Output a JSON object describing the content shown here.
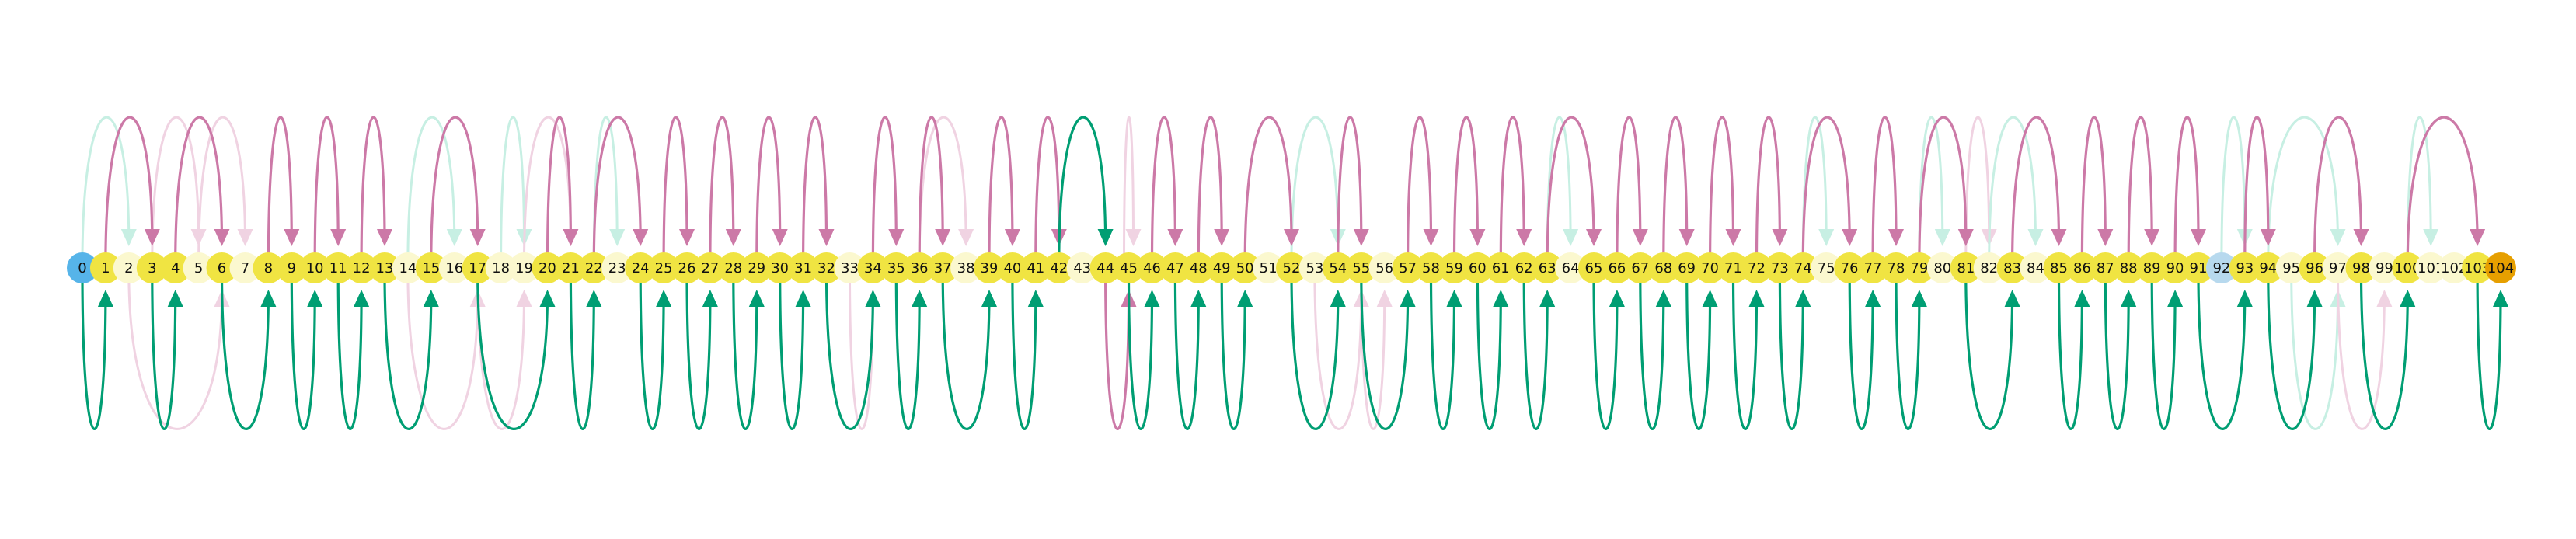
{
  "chart_data": {
    "type": "arc-diagram",
    "title": "",
    "nodes": [
      {
        "label": "0",
        "kind": "start"
      },
      {
        "label": "1",
        "kind": "main"
      },
      {
        "label": "2",
        "kind": "faint"
      },
      {
        "label": "3",
        "kind": "main"
      },
      {
        "label": "4",
        "kind": "main"
      },
      {
        "label": "5",
        "kind": "faint"
      },
      {
        "label": "6",
        "kind": "main"
      },
      {
        "label": "7",
        "kind": "faint"
      },
      {
        "label": "8",
        "kind": "main"
      },
      {
        "label": "9",
        "kind": "main"
      },
      {
        "label": "10",
        "kind": "main"
      },
      {
        "label": "11",
        "kind": "main"
      },
      {
        "label": "12",
        "kind": "main"
      },
      {
        "label": "13",
        "kind": "main"
      },
      {
        "label": "14",
        "kind": "faint"
      },
      {
        "label": "15",
        "kind": "main"
      },
      {
        "label": "16",
        "kind": "faint"
      },
      {
        "label": "17",
        "kind": "main"
      },
      {
        "label": "18",
        "kind": "faint"
      },
      {
        "label": "19",
        "kind": "faint"
      },
      {
        "label": "20",
        "kind": "main"
      },
      {
        "label": "21",
        "kind": "main"
      },
      {
        "label": "22",
        "kind": "main"
      },
      {
        "label": "23",
        "kind": "faint"
      },
      {
        "label": "24",
        "kind": "main"
      },
      {
        "label": "25",
        "kind": "main"
      },
      {
        "label": "26",
        "kind": "main"
      },
      {
        "label": "27",
        "kind": "main"
      },
      {
        "label": "28",
        "kind": "main"
      },
      {
        "label": "29",
        "kind": "main"
      },
      {
        "label": "30",
        "kind": "main"
      },
      {
        "label": "31",
        "kind": "main"
      },
      {
        "label": "32",
        "kind": "main"
      },
      {
        "label": "33",
        "kind": "faint"
      },
      {
        "label": "34",
        "kind": "main"
      },
      {
        "label": "35",
        "kind": "main"
      },
      {
        "label": "36",
        "kind": "main"
      },
      {
        "label": "37",
        "kind": "main"
      },
      {
        "label": "38",
        "kind": "faint"
      },
      {
        "label": "39",
        "kind": "main"
      },
      {
        "label": "40",
        "kind": "main"
      },
      {
        "label": "41",
        "kind": "main"
      },
      {
        "label": "42",
        "kind": "main"
      },
      {
        "label": "43",
        "kind": "faint"
      },
      {
        "label": "44",
        "kind": "main"
      },
      {
        "label": "45",
        "kind": "main"
      },
      {
        "label": "46",
        "kind": "main"
      },
      {
        "label": "47",
        "kind": "main"
      },
      {
        "label": "48",
        "kind": "main"
      },
      {
        "label": "49",
        "kind": "main"
      },
      {
        "label": "50",
        "kind": "main"
      },
      {
        "label": "51",
        "kind": "faint"
      },
      {
        "label": "52",
        "kind": "main"
      },
      {
        "label": "53",
        "kind": "faint"
      },
      {
        "label": "54",
        "kind": "main"
      },
      {
        "label": "55",
        "kind": "main"
      },
      {
        "label": "56",
        "kind": "faint"
      },
      {
        "label": "57",
        "kind": "main"
      },
      {
        "label": "58",
        "kind": "main"
      },
      {
        "label": "59",
        "kind": "main"
      },
      {
        "label": "60",
        "kind": "main"
      },
      {
        "label": "61",
        "kind": "main"
      },
      {
        "label": "62",
        "kind": "main"
      },
      {
        "label": "63",
        "kind": "main"
      },
      {
        "label": "64",
        "kind": "faint"
      },
      {
        "label": "65",
        "kind": "main"
      },
      {
        "label": "66",
        "kind": "main"
      },
      {
        "label": "67",
        "kind": "main"
      },
      {
        "label": "68",
        "kind": "main"
      },
      {
        "label": "69",
        "kind": "main"
      },
      {
        "label": "70",
        "kind": "main"
      },
      {
        "label": "71",
        "kind": "main"
      },
      {
        "label": "72",
        "kind": "main"
      },
      {
        "label": "73",
        "kind": "main"
      },
      {
        "label": "74",
        "kind": "main"
      },
      {
        "label": "75",
        "kind": "faint"
      },
      {
        "label": "76",
        "kind": "main"
      },
      {
        "label": "77",
        "kind": "main"
      },
      {
        "label": "78",
        "kind": "main"
      },
      {
        "label": "79",
        "kind": "main"
      },
      {
        "label": "80",
        "kind": "faint"
      },
      {
        "label": "81",
        "kind": "main"
      },
      {
        "label": "82",
        "kind": "faint"
      },
      {
        "label": "83",
        "kind": "main"
      },
      {
        "label": "84",
        "kind": "faint"
      },
      {
        "label": "85",
        "kind": "main"
      },
      {
        "label": "86",
        "kind": "main"
      },
      {
        "label": "87",
        "kind": "main"
      },
      {
        "label": "88",
        "kind": "main"
      },
      {
        "label": "89",
        "kind": "main"
      },
      {
        "label": "90",
        "kind": "main"
      },
      {
        "label": "91",
        "kind": "main"
      },
      {
        "label": "92",
        "kind": "alt"
      },
      {
        "label": "93",
        "kind": "main"
      },
      {
        "label": "94",
        "kind": "main"
      },
      {
        "label": "95",
        "kind": "faint"
      },
      {
        "label": "96",
        "kind": "main"
      },
      {
        "label": "97",
        "kind": "faint"
      },
      {
        "label": "98",
        "kind": "main"
      },
      {
        "label": "99",
        "kind": "faint"
      },
      {
        "label": "100",
        "kind": "main"
      },
      {
        "label": "101",
        "kind": "faint"
      },
      {
        "label": "102",
        "kind": "faint"
      },
      {
        "label": "103",
        "kind": "main"
      },
      {
        "label": "104",
        "kind": "end"
      }
    ],
    "upper_arcs": [
      {
        "from": 1,
        "to": 3,
        "style": "pink"
      },
      {
        "from": 4,
        "to": 6,
        "style": "pink"
      },
      {
        "from": 8,
        "to": 9,
        "style": "pink"
      },
      {
        "from": 10,
        "to": 11,
        "style": "pink"
      },
      {
        "from": 12,
        "to": 13,
        "style": "pink"
      },
      {
        "from": 15,
        "to": 17,
        "style": "pink"
      },
      {
        "from": 20,
        "to": 21,
        "style": "pink"
      },
      {
        "from": 22,
        "to": 24,
        "style": "pink"
      },
      {
        "from": 25,
        "to": 26,
        "style": "pink"
      },
      {
        "from": 27,
        "to": 28,
        "style": "pink"
      },
      {
        "from": 29,
        "to": 30,
        "style": "pink"
      },
      {
        "from": 31,
        "to": 32,
        "style": "pink"
      },
      {
        "from": 34,
        "to": 35,
        "style": "pink"
      },
      {
        "from": 36,
        "to": 37,
        "style": "pink"
      },
      {
        "from": 39,
        "to": 40,
        "style": "pink"
      },
      {
        "from": 41,
        "to": 42,
        "style": "pink"
      },
      {
        "from": 42,
        "to": 44,
        "style": "green"
      },
      {
        "from": 46,
        "to": 47,
        "style": "pink"
      },
      {
        "from": 48,
        "to": 49,
        "style": "pink"
      },
      {
        "from": 50,
        "to": 52,
        "style": "pink"
      },
      {
        "from": 54,
        "to": 55,
        "style": "pink"
      },
      {
        "from": 57,
        "to": 58,
        "style": "pink"
      },
      {
        "from": 59,
        "to": 60,
        "style": "pink"
      },
      {
        "from": 61,
        "to": 62,
        "style": "pink"
      },
      {
        "from": 63,
        "to": 65,
        "style": "pink"
      },
      {
        "from": 66,
        "to": 67,
        "style": "pink"
      },
      {
        "from": 68,
        "to": 69,
        "style": "pink"
      },
      {
        "from": 70,
        "to": 71,
        "style": "pink"
      },
      {
        "from": 72,
        "to": 73,
        "style": "pink"
      },
      {
        "from": 74,
        "to": 76,
        "style": "pink"
      },
      {
        "from": 77,
        "to": 78,
        "style": "pink"
      },
      {
        "from": 79,
        "to": 81,
        "style": "pink"
      },
      {
        "from": 83,
        "to": 85,
        "style": "pink"
      },
      {
        "from": 86,
        "to": 87,
        "style": "pink"
      },
      {
        "from": 88,
        "to": 89,
        "style": "pink"
      },
      {
        "from": 90,
        "to": 91,
        "style": "pink"
      },
      {
        "from": 93,
        "to": 94,
        "style": "pink"
      },
      {
        "from": 96,
        "to": 98,
        "style": "pink"
      },
      {
        "from": 100,
        "to": 103,
        "style": "pink"
      },
      {
        "from": 0,
        "to": 2,
        "style": "faint-green"
      },
      {
        "from": 3,
        "to": 5,
        "style": "faint-pink"
      },
      {
        "from": 5,
        "to": 7,
        "style": "faint-pink"
      },
      {
        "from": 14,
        "to": 16,
        "style": "faint-green"
      },
      {
        "from": 18,
        "to": 19,
        "style": "faint-green"
      },
      {
        "from": 19,
        "to": 21,
        "style": "faint-pink"
      },
      {
        "from": 22,
        "to": 23,
        "style": "faint-green"
      },
      {
        "from": 36,
        "to": 38,
        "style": "faint-pink"
      },
      {
        "from": 45,
        "to": 45,
        "style": "faint-pink"
      },
      {
        "from": 52,
        "to": 54,
        "style": "faint-green"
      },
      {
        "from": 63,
        "to": 64,
        "style": "faint-green"
      },
      {
        "from": 74,
        "to": 75,
        "style": "faint-green"
      },
      {
        "from": 79,
        "to": 80,
        "style": "faint-green"
      },
      {
        "from": 81,
        "to": 82,
        "style": "faint-pink"
      },
      {
        "from": 82,
        "to": 84,
        "style": "faint-green"
      },
      {
        "from": 92,
        "to": 93,
        "style": "faint-green"
      },
      {
        "from": 94,
        "to": 97,
        "style": "faint-green"
      },
      {
        "from": 100,
        "to": 101,
        "style": "faint-green"
      }
    ],
    "lower_arcs": [
      {
        "from": 0,
        "to": 1,
        "style": "green"
      },
      {
        "from": 3,
        "to": 4,
        "style": "green"
      },
      {
        "from": 6,
        "to": 8,
        "style": "green"
      },
      {
        "from": 9,
        "to": 10,
        "style": "green"
      },
      {
        "from": 11,
        "to": 12,
        "style": "green"
      },
      {
        "from": 13,
        "to": 15,
        "style": "green"
      },
      {
        "from": 17,
        "to": 20,
        "style": "green"
      },
      {
        "from": 21,
        "to": 22,
        "style": "green"
      },
      {
        "from": 24,
        "to": 25,
        "style": "green"
      },
      {
        "from": 26,
        "to": 27,
        "style": "green"
      },
      {
        "from": 28,
        "to": 29,
        "style": "green"
      },
      {
        "from": 30,
        "to": 31,
        "style": "green"
      },
      {
        "from": 32,
        "to": 34,
        "style": "green"
      },
      {
        "from": 35,
        "to": 36,
        "style": "green"
      },
      {
        "from": 37,
        "to": 39,
        "style": "green"
      },
      {
        "from": 40,
        "to": 41,
        "style": "green"
      },
      {
        "from": 44,
        "to": 45,
        "style": "pink"
      },
      {
        "from": 45,
        "to": 46,
        "style": "green"
      },
      {
        "from": 47,
        "to": 48,
        "style": "green"
      },
      {
        "from": 49,
        "to": 50,
        "style": "green"
      },
      {
        "from": 52,
        "to": 54,
        "style": "green"
      },
      {
        "from": 55,
        "to": 57,
        "style": "green"
      },
      {
        "from": 58,
        "to": 59,
        "style": "green"
      },
      {
        "from": 60,
        "to": 61,
        "style": "green"
      },
      {
        "from": 62,
        "to": 63,
        "style": "green"
      },
      {
        "from": 65,
        "to": 66,
        "style": "green"
      },
      {
        "from": 67,
        "to": 68,
        "style": "green"
      },
      {
        "from": 69,
        "to": 70,
        "style": "green"
      },
      {
        "from": 71,
        "to": 72,
        "style": "green"
      },
      {
        "from": 73,
        "to": 74,
        "style": "green"
      },
      {
        "from": 76,
        "to": 77,
        "style": "green"
      },
      {
        "from": 78,
        "to": 79,
        "style": "green"
      },
      {
        "from": 81,
        "to": 83,
        "style": "green"
      },
      {
        "from": 85,
        "to": 86,
        "style": "green"
      },
      {
        "from": 87,
        "to": 88,
        "style": "green"
      },
      {
        "from": 89,
        "to": 90,
        "style": "green"
      },
      {
        "from": 91,
        "to": 93,
        "style": "green"
      },
      {
        "from": 94,
        "to": 96,
        "style": "green"
      },
      {
        "from": 98,
        "to": 100,
        "style": "green"
      },
      {
        "from": 103,
        "to": 104,
        "style": "green"
      },
      {
        "from": 2,
        "to": 6,
        "style": "faint-pink"
      },
      {
        "from": 14,
        "to": 17,
        "style": "faint-pink"
      },
      {
        "from": 17,
        "to": 19,
        "style": "faint-pink"
      },
      {
        "from": 33,
        "to": 34,
        "style": "faint-pink"
      },
      {
        "from": 53,
        "to": 55,
        "style": "faint-pink"
      },
      {
        "from": 55,
        "to": 56,
        "style": "faint-pink"
      },
      {
        "from": 95,
        "to": 97,
        "style": "faint-green"
      },
      {
        "from": 97,
        "to": 99,
        "style": "faint-pink"
      }
    ],
    "colors": {
      "main_node": "#f0e442",
      "faint_node": "#fbf8cf",
      "start_node": "#56b4e9",
      "alt_node": "#b7d9ee",
      "end_node": "#e69f00",
      "pink": "#cc79a7",
      "green": "#009e73",
      "faint_pink": "#f0d3e2",
      "faint_green": "#c7efe3"
    }
  }
}
